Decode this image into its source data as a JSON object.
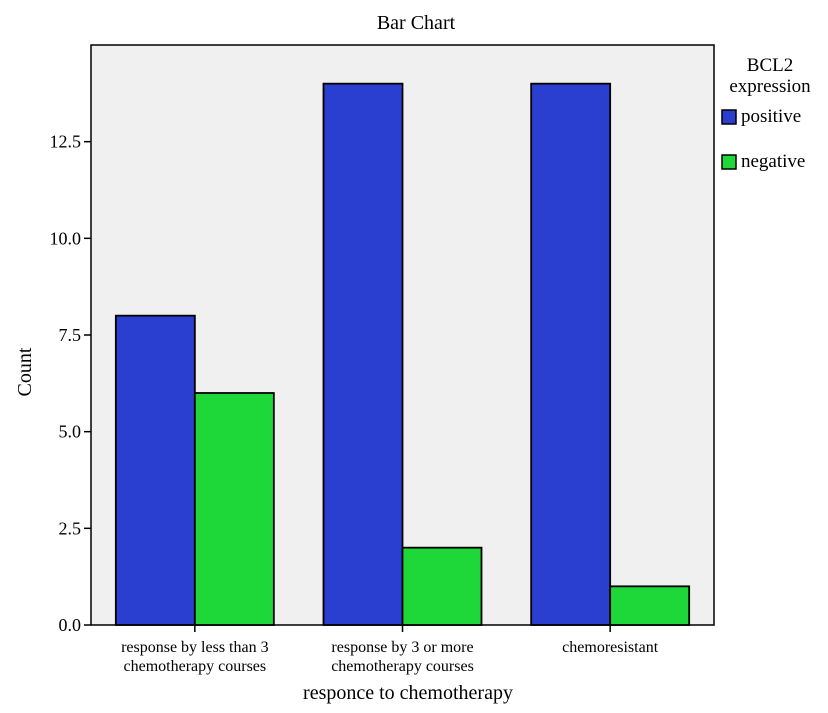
{
  "chart_data": {
    "type": "bar",
    "title": "Bar Chart",
    "xlabel": "responce to chemotherapy",
    "ylabel": "Count",
    "categories": [
      [
        "response by less than 3",
        "chemotherapy courses"
      ],
      [
        "response by 3 or more",
        "chemotherapy courses"
      ],
      [
        "chemoresistant"
      ]
    ],
    "series": [
      {
        "name": "positive",
        "values": [
          8,
          14,
          14
        ],
        "color": "#2a3fcf"
      },
      {
        "name": "negative",
        "values": [
          6,
          2,
          1
        ],
        "color": "#1ed83a"
      }
    ],
    "ylim": [
      0,
      15
    ],
    "yticks": [
      0.0,
      2.5,
      5.0,
      7.5,
      10.0,
      12.5
    ],
    "ytick_labels": [
      "0.0",
      "2.5",
      "5.0",
      "7.5",
      "10.0",
      "12.5"
    ],
    "legend": {
      "title": [
        "BCL2",
        "expression"
      ],
      "placement": "right"
    },
    "grid": false,
    "plot_background": "#f0f0f0"
  }
}
